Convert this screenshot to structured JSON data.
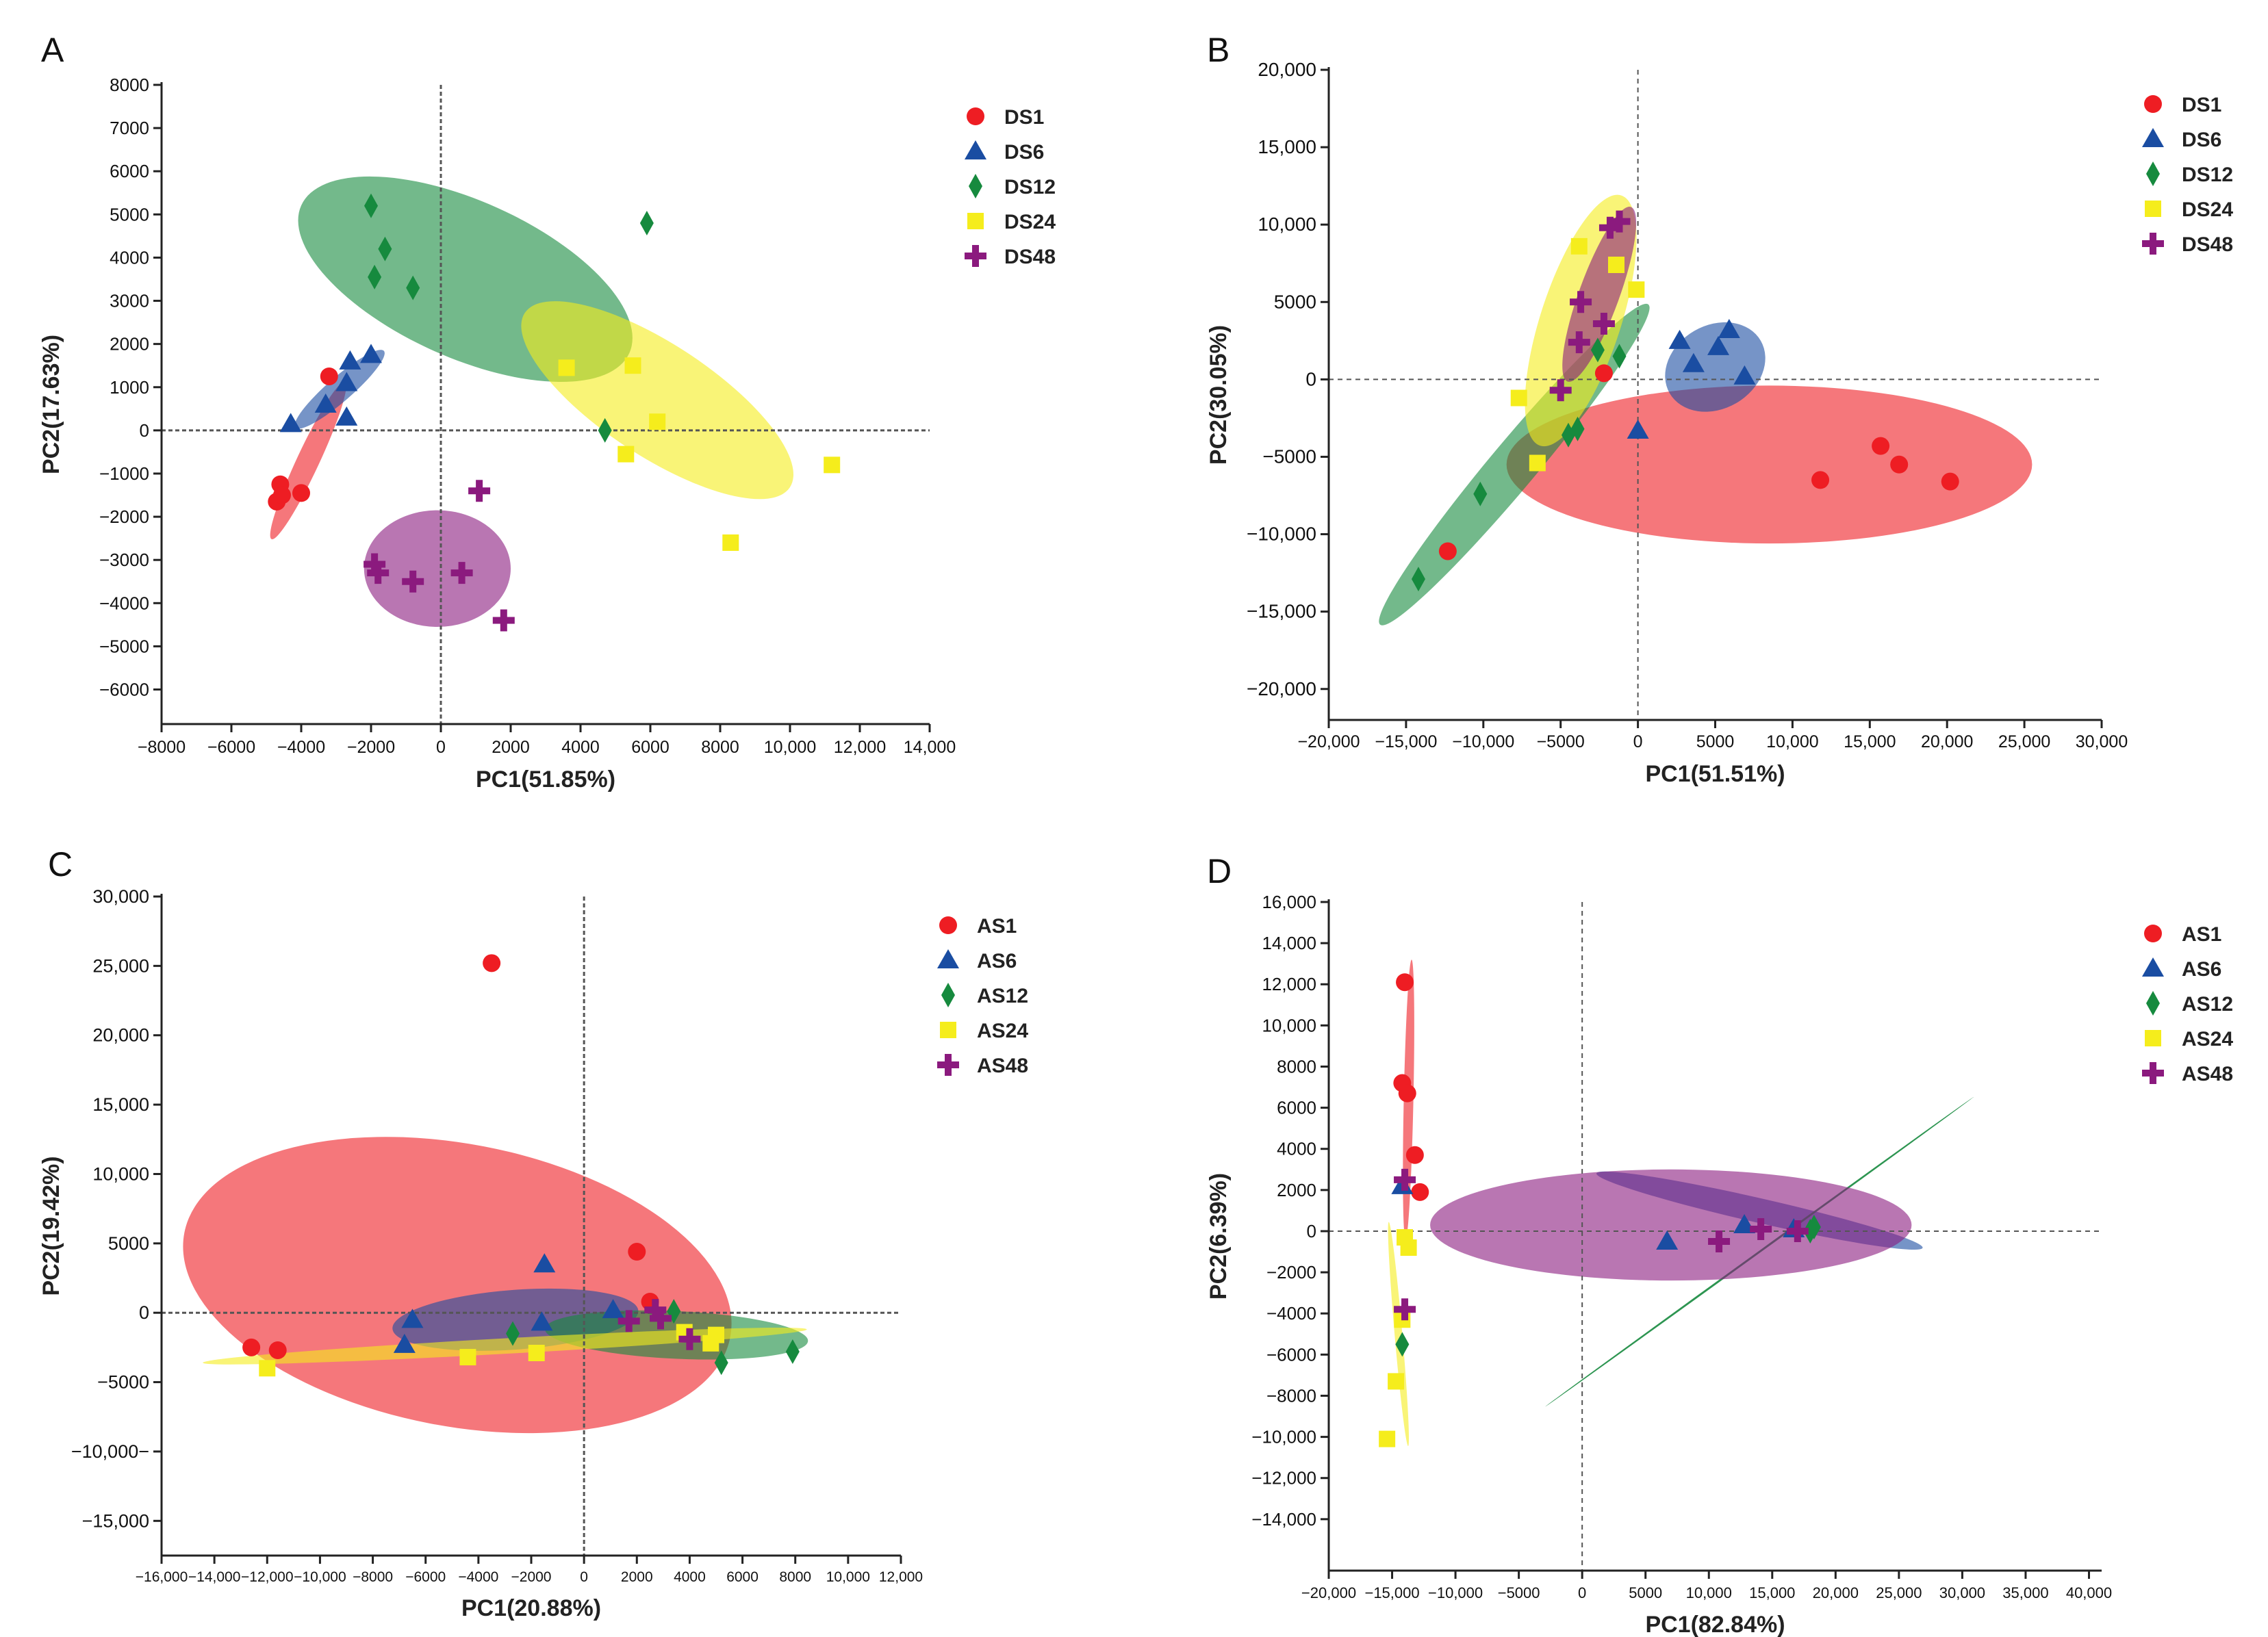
{
  "figure": {
    "panel_letters": [
      "A",
      "B",
      "C",
      "D"
    ]
  },
  "chart_data": [
    {
      "panel": "A",
      "type": "scatter",
      "xlabel": "PC1(51.85%)",
      "ylabel": "PC2(17.63%)",
      "xlim": [
        -8000,
        14000
      ],
      "ylim": [
        -6800,
        8000
      ],
      "xticks": [
        -8000,
        -6000,
        -4000,
        -2000,
        0,
        2000,
        4000,
        6000,
        8000,
        10000,
        12000,
        14000
      ],
      "xtick_labels": [
        "−8000",
        "−6000",
        "−4000",
        "−2000",
        "0",
        "2000",
        "4000",
        "6000",
        "8000",
        "10,000",
        "12,000",
        "14,000"
      ],
      "yticks": [
        8000,
        7000,
        6000,
        5000,
        4000,
        3000,
        2000,
        1000,
        0,
        -1000,
        -2000,
        -3000,
        -4000,
        -5000,
        -6000
      ],
      "ytick_labels": [
        "8000",
        "7000",
        "6000",
        "5000",
        "4000",
        "3000",
        "2000",
        "1000",
        "0",
        "−1000",
        "−2000",
        "−3000",
        "−4000",
        "−5000",
        "−6000"
      ],
      "legend_position": "top-right",
      "series": [
        {
          "name": "DS1",
          "color": "#ee1d23",
          "marker": "circle",
          "points": [
            [
              -4600,
              -1250
            ],
            [
              -4700,
              -1650
            ],
            [
              -4000,
              -1450
            ],
            [
              -4550,
              -1500
            ],
            [
              -3200,
              1250
            ]
          ],
          "ellipse": {
            "cx": -3800,
            "cy": -700,
            "rx": 2100,
            "ry": 300,
            "angle": 60
          }
        },
        {
          "name": "DS6",
          "color": "#1a4da2",
          "marker": "triangle",
          "points": [
            [
              -4300,
              150
            ],
            [
              -3300,
              600
            ],
            [
              -2700,
              1100
            ],
            [
              -2600,
              1600
            ],
            [
              -2000,
              1750
            ],
            [
              -2700,
              300
            ]
          ],
          "ellipse": {
            "cx": -2900,
            "cy": 950,
            "rx": 1550,
            "ry": 300,
            "angle": 35
          }
        },
        {
          "name": "DS12",
          "color": "#168a3e",
          "marker": "diamond",
          "points": [
            [
              -2000,
              5200
            ],
            [
              -1600,
              4200
            ],
            [
              -1900,
              3550
            ],
            [
              -800,
              3300
            ],
            [
              5900,
              4800
            ],
            [
              4700,
              0
            ]
          ],
          "ellipse": {
            "cx": 700,
            "cy": 3500,
            "rx": 5000,
            "ry": 1850,
            "angle": -20
          }
        },
        {
          "name": "DS24",
          "color": "#f5ed1c",
          "marker": "square",
          "points": [
            [
              3600,
              1450
            ],
            [
              5500,
              1500
            ],
            [
              6200,
              200
            ],
            [
              5300,
              -550
            ],
            [
              11200,
              -800
            ],
            [
              8300,
              -2600
            ]
          ],
          "ellipse": {
            "cx": 6200,
            "cy": 700,
            "rx": 4300,
            "ry": 1350,
            "angle": -28
          }
        },
        {
          "name": "DS48",
          "color": "#8b1a7e",
          "marker": "cross",
          "points": [
            [
              1100,
              -1400
            ],
            [
              -1900,
              -3100
            ],
            [
              -1800,
              -3300
            ],
            [
              -800,
              -3500
            ],
            [
              600,
              -3300
            ],
            [
              1800,
              -4400
            ]
          ],
          "ellipse": {
            "cx": -100,
            "cy": -3200,
            "rx": 2100,
            "ry": 1350,
            "angle": 0
          }
        }
      ]
    },
    {
      "panel": "B",
      "type": "scatter",
      "xlabel": "PC1(51.51%)",
      "ylabel": "PC2(30.05%)",
      "xlim": [
        -20000,
        30000
      ],
      "ylim": [
        -22000,
        20000
      ],
      "xticks": [
        -20000,
        -15000,
        -10000,
        -5000,
        0,
        5000,
        10000,
        15000,
        20000,
        25000,
        30000
      ],
      "xtick_labels": [
        "−20,000",
        "−15,000",
        "−10,000",
        "−5000",
        "0",
        "5000",
        "10,000",
        "15,000",
        "20,000",
        "25,000",
        "30,000"
      ],
      "yticks": [
        20000,
        15000,
        10000,
        5000,
        0,
        -5000,
        -10000,
        -15000,
        -20000
      ],
      "ytick_labels": [
        "20,000",
        "15,000",
        "10,000",
        "5000",
        "0",
        "−5000",
        "−10,000",
        "−15,000",
        "−20,000"
      ],
      "legend_position": "top-right",
      "series": [
        {
          "name": "DS1",
          "color": "#ee1d23",
          "marker": "circle",
          "points": [
            [
              -2200,
              400
            ],
            [
              -12300,
              -11100
            ],
            [
              11800,
              -6500
            ],
            [
              15700,
              -4300
            ],
            [
              16900,
              -5500
            ],
            [
              20200,
              -6600
            ]
          ],
          "ellipse": {
            "cx": 8500,
            "cy": -5500,
            "rx": 17000,
            "ry": 5100,
            "angle": 0
          }
        },
        {
          "name": "DS6",
          "color": "#1a4da2",
          "marker": "triangle",
          "points": [
            [
              2700,
              2500
            ],
            [
              3600,
              1000
            ],
            [
              5200,
              2100
            ],
            [
              5900,
              3200
            ],
            [
              6900,
              200
            ],
            [
              0,
              -3300
            ]
          ],
          "ellipse": {
            "cx": 5000,
            "cy": 800,
            "rx": 3400,
            "ry": 2700,
            "angle": 30
          }
        },
        {
          "name": "DS12",
          "color": "#168a3e",
          "marker": "diamond",
          "points": [
            [
              -2600,
              1900
            ],
            [
              -1200,
              1500
            ],
            [
              -4500,
              -3600
            ],
            [
              -3900,
              -3200
            ],
            [
              -10200,
              -7400
            ],
            [
              -14200,
              -12900
            ]
          ],
          "ellipse": {
            "cx": -8000,
            "cy": -5500,
            "rx": 13500,
            "ry": 1500,
            "angle": 50
          }
        },
        {
          "name": "DS24",
          "color": "#f5ed1c",
          "marker": "square",
          "points": [
            [
              -3800,
              8600
            ],
            [
              -1400,
              7400
            ],
            [
              -100,
              5800
            ],
            [
              -7700,
              -1200
            ],
            [
              -6500,
              -5400
            ]
          ],
          "ellipse": {
            "cx": -3700,
            "cy": 3800,
            "rx": 8500,
            "ry": 2600,
            "angle": 72
          }
        },
        {
          "name": "DS48",
          "color": "#8b1a7e",
          "marker": "cross",
          "points": [
            [
              -1800,
              9800
            ],
            [
              -1200,
              10200
            ],
            [
              -3700,
              5000
            ],
            [
              -3800,
              2400
            ],
            [
              -2200,
              3600
            ],
            [
              -5000,
              -700
            ]
          ],
          "ellipse": {
            "cx": -2500,
            "cy": 5500,
            "rx": 6000,
            "ry": 1300,
            "angle": 70
          }
        }
      ]
    },
    {
      "panel": "C",
      "type": "scatter",
      "xlabel": "PC1(20.88%)",
      "ylabel": "PC2(19.42%)",
      "xlim": [
        -16000,
        12000
      ],
      "ylim": [
        -17500,
        30000
      ],
      "xticks": [
        -16000,
        -14000,
        -12000,
        -10000,
        -8000,
        -6000,
        -4000,
        -2000,
        0,
        2000,
        4000,
        6000,
        8000,
        10000,
        12000
      ],
      "xtick_labels": [
        "−16,000",
        "−14,000",
        "−12,000",
        "−10,000",
        "−8000",
        "−6000",
        "−4000",
        "−2000",
        "0",
        "2000",
        "4000",
        "6000",
        "8000",
        "10,000",
        "12,000"
      ],
      "yticks": [
        30000,
        25000,
        20000,
        15000,
        10000,
        5000,
        0,
        -5000,
        -10000,
        -15000
      ],
      "ytick_labels": [
        "30,000",
        "25,000",
        "20,000",
        "15,000",
        "10,000",
        "5000",
        "0",
        "−5000",
        "−10,000−",
        "−15,000"
      ],
      "legend_position": "top-right",
      "series": [
        {
          "name": "AS1",
          "color": "#ee1d23",
          "marker": "circle",
          "points": [
            [
              -3500,
              25200
            ],
            [
              2000,
              4400
            ],
            [
              2500,
              800
            ],
            [
              -12600,
              -2500
            ],
            [
              -11600,
              -2700
            ]
          ],
          "ellipse": {
            "cx": -4800,
            "cy": 2000,
            "rx": 11000,
            "ry": 8900,
            "angle": -20
          }
        },
        {
          "name": "AS6",
          "color": "#1a4da2",
          "marker": "triangle",
          "points": [
            [
              -1500,
              3500
            ],
            [
              -6500,
              -500
            ],
            [
              -6800,
              -2300
            ],
            [
              -1600,
              -700
            ],
            [
              1100,
              200
            ]
          ],
          "ellipse": {
            "cx": -2600,
            "cy": -500,
            "rx": 4700,
            "ry": 2100,
            "angle": 8
          }
        },
        {
          "name": "AS12",
          "color": "#168a3e",
          "marker": "diamond",
          "points": [
            [
              -2700,
              -1500
            ],
            [
              3400,
              100
            ],
            [
              5200,
              -3600
            ],
            [
              7900,
              -2800
            ]
          ],
          "ellipse": {
            "cx": 3500,
            "cy": -1600,
            "rx": 5000,
            "ry": 1700,
            "angle": -5
          }
        },
        {
          "name": "AS24",
          "color": "#f5ed1c",
          "marker": "square",
          "points": [
            [
              -12000,
              -4000
            ],
            [
              -4400,
              -3200
            ],
            [
              -1800,
              -2900
            ],
            [
              3800,
              -1400
            ],
            [
              5000,
              -1600
            ],
            [
              4800,
              -2200
            ]
          ],
          "ellipse": {
            "cx": -3000,
            "cy": -2400,
            "rx": 11500,
            "ry": 550,
            "angle": 6
          }
        },
        {
          "name": "AS48",
          "color": "#8b1a7e",
          "marker": "cross",
          "points": [
            [
              1700,
              -600
            ],
            [
              2700,
              200
            ],
            [
              2900,
              -400
            ],
            [
              4000,
              -1900
            ]
          ],
          "ellipse": null
        }
      ]
    },
    {
      "panel": "D",
      "type": "scatter",
      "xlabel": "PC1(82.84%)",
      "ylabel": "PC2(6.39%)",
      "xlim": [
        -20000,
        41000
      ],
      "ylim": [
        -16500,
        16000
      ],
      "xticks": [
        -20000,
        -15000,
        -10000,
        -5000,
        0,
        5000,
        10000,
        15000,
        20000,
        25000,
        30000,
        35000,
        40000
      ],
      "xtick_labels": [
        "−20,000",
        "−15,000",
        "−10,000",
        "−5000",
        "0",
        "5000",
        "10,000",
        "15,000",
        "20,000",
        "25,000",
        "30,000",
        "35,000",
        "40,000"
      ],
      "yticks": [
        16000,
        14000,
        12000,
        10000,
        8000,
        6000,
        4000,
        2000,
        0,
        -2000,
        -4000,
        -6000,
        -8000,
        -10000,
        -12000,
        -14000
      ],
      "ytick_labels": [
        "16,000",
        "14,000",
        "12,000",
        "10,000",
        "8000",
        "6000",
        "4000",
        "2000",
        "0",
        "−2000",
        "−4000",
        "−6000",
        "−8000",
        "−10,000",
        "−12,000",
        "−14,000"
      ],
      "legend_position": "top-right",
      "series": [
        {
          "name": "AS1",
          "color": "#ee1d23",
          "marker": "circle",
          "points": [
            [
              -14000,
              12100
            ],
            [
              -14200,
              7200
            ],
            [
              -13800,
              6700
            ],
            [
              -13200,
              3700
            ],
            [
              -12800,
              1900
            ]
          ],
          "ellipse": {
            "cx": -13700,
            "cy": 6400,
            "rx": 6800,
            "ry": 380,
            "angle": 88
          }
        },
        {
          "name": "AS6",
          "color": "#1a4da2",
          "marker": "triangle",
          "points": [
            [
              -14200,
              2200
            ],
            [
              6700,
              -500
            ],
            [
              12800,
              300
            ],
            [
              16700,
              100
            ]
          ],
          "ellipse": {
            "cx": 14000,
            "cy": 1000,
            "rx": 13000,
            "ry": 600,
            "angle": -8
          }
        },
        {
          "name": "AS12",
          "color": "#168a3e",
          "marker": "diamond",
          "points": [
            [
              -14200,
              -5500
            ],
            [
              18000,
              0
            ],
            [
              18300,
              200
            ]
          ],
          "ellipse": {
            "cx": 14000,
            "cy": -1000,
            "rx": 18500,
            "ry": 60,
            "angle": 24
          }
        },
        {
          "name": "AS24",
          "color": "#f5ed1c",
          "marker": "square",
          "points": [
            [
              -14000,
              -300
            ],
            [
              -13700,
              -800
            ],
            [
              -14200,
              -4300
            ],
            [
              -14700,
              -7300
            ],
            [
              -15400,
              -10100
            ]
          ],
          "ellipse": {
            "cx": -14500,
            "cy": -5000,
            "rx": 5500,
            "ry": 300,
            "angle": -82
          }
        },
        {
          "name": "AS48",
          "color": "#8b1a7e",
          "marker": "cross",
          "points": [
            [
              -14000,
              2500
            ],
            [
              -14000,
              -3800
            ],
            [
              10800,
              -500
            ],
            [
              14100,
              100
            ],
            [
              17000,
              0
            ]
          ],
          "ellipse": {
            "cx": 7000,
            "cy": 300,
            "rx": 19000,
            "ry": 2700,
            "angle": 0
          }
        }
      ]
    }
  ]
}
